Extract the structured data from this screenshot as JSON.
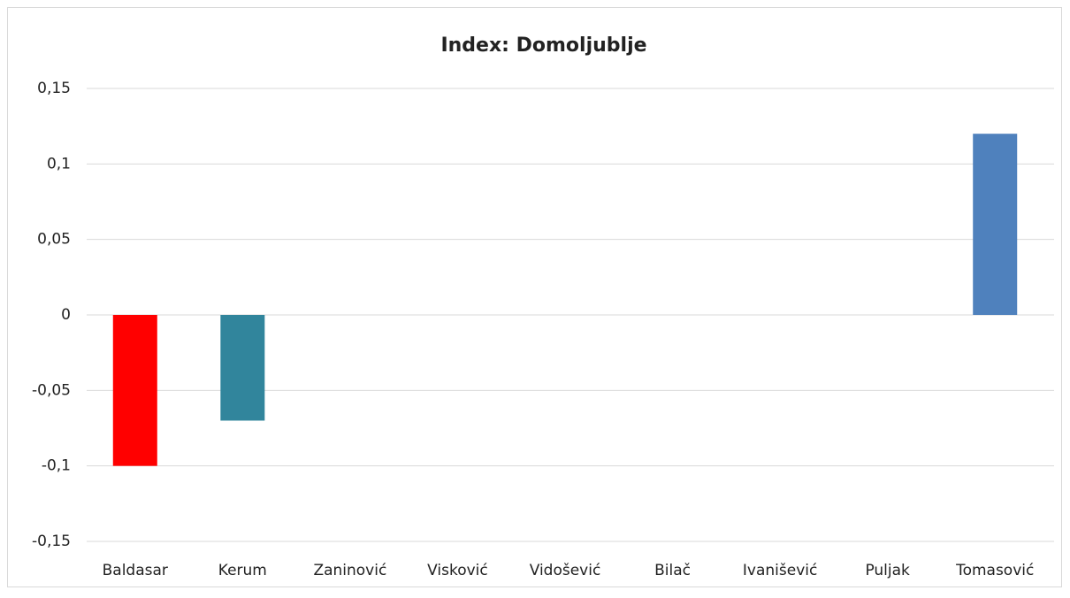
{
  "chart_data": {
    "type": "bar",
    "title": "Index: Domoljublje",
    "categories": [
      "Baldasar",
      "Kerum",
      "Zaninović",
      "Visković",
      "Vidošević",
      "Bilač",
      "Ivanišević",
      "Puljak",
      "Tomasović"
    ],
    "values": [
      -0.1,
      -0.07,
      0,
      0,
      0,
      0,
      0,
      0,
      0.12
    ],
    "colors": [
      "#ff0000",
      "#31859c",
      "#4f81bd",
      "#4f81bd",
      "#4f81bd",
      "#4f81bd",
      "#4f81bd",
      "#4f81bd",
      "#4f81bd"
    ],
    "ylim": [
      -0.15,
      0.15
    ],
    "yticks": [
      {
        "value": -0.15,
        "label": "-0,15"
      },
      {
        "value": -0.1,
        "label": "-0,1"
      },
      {
        "value": -0.05,
        "label": "-0,05"
      },
      0,
      {
        "value": 0.05,
        "label": "0,05"
      },
      {
        "value": 0.1,
        "label": "0,1"
      },
      {
        "value": 0.15,
        "label": "0,15"
      }
    ],
    "grid": true
  }
}
